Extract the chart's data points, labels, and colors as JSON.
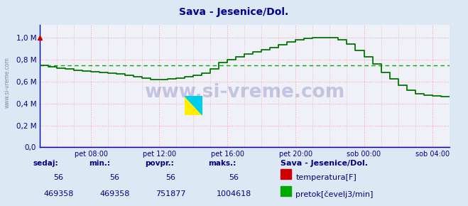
{
  "title": "Sava - Jesenice/Dol.",
  "bg_color": "#dce9f5",
  "plot_bg_color": "#f0f0f8",
  "grid_color": "#f0a0a0",
  "avg_line_color": "#00aa00",
  "avg_line_value": 0.751877,
  "flow_color": "#007700",
  "temp_color": "#cc0000",
  "x_labels": [
    "pet 08:00",
    "pet 12:00",
    "pet 16:00",
    "pet 20:00",
    "sob 00:00",
    "sob 04:00"
  ],
  "x_ticks_pos": [
    36,
    84,
    132,
    180,
    228,
    276
  ],
  "y_ticks": [
    0.0,
    0.2,
    0.4,
    0.6,
    0.8,
    1.0
  ],
  "y_labels": [
    "0,0",
    "0,2 M",
    "0,4 M",
    "0,6 M",
    "0,8 M",
    "1,0 M"
  ],
  "ylim": [
    0,
    1.12
  ],
  "xlim": [
    0,
    288
  ],
  "watermark": "www.si-vreme.com",
  "left_label": "www.si-vreme.com",
  "stat_labels": [
    "sedaj:",
    "min.:",
    "povpr.:",
    "maks.:"
  ],
  "stat_values_temp": [
    "56",
    "56",
    "56",
    "56"
  ],
  "stat_values_flow": [
    "469358",
    "469358",
    "751877",
    "1004618"
  ],
  "legend_title": "Sava - Jesenice/Dol.",
  "legend_items": [
    {
      "label": "temperatura[F]",
      "color": "#cc0000"
    },
    {
      "label": "pretok[čevelj3/min]",
      "color": "#00aa00"
    }
  ],
  "flow_keypoints": [
    [
      0,
      0.755
    ],
    [
      6,
      0.745
    ],
    [
      12,
      0.73
    ],
    [
      18,
      0.718
    ],
    [
      24,
      0.708
    ],
    [
      30,
      0.7
    ],
    [
      36,
      0.695
    ],
    [
      42,
      0.688
    ],
    [
      48,
      0.68
    ],
    [
      54,
      0.672
    ],
    [
      60,
      0.663
    ],
    [
      66,
      0.648
    ],
    [
      72,
      0.635
    ],
    [
      78,
      0.622
    ],
    [
      84,
      0.615
    ],
    [
      90,
      0.62
    ],
    [
      96,
      0.628
    ],
    [
      102,
      0.638
    ],
    [
      108,
      0.65
    ],
    [
      114,
      0.665
    ],
    [
      118,
      0.68
    ],
    [
      121,
      0.695
    ],
    [
      123,
      0.72
    ],
    [
      125,
      0.74
    ],
    [
      127,
      0.76
    ],
    [
      129,
      0.785
    ],
    [
      131,
      0.805
    ],
    [
      133,
      0.79
    ],
    [
      135,
      0.808
    ],
    [
      138,
      0.82
    ],
    [
      142,
      0.835
    ],
    [
      146,
      0.848
    ],
    [
      150,
      0.86
    ],
    [
      155,
      0.878
    ],
    [
      160,
      0.895
    ],
    [
      165,
      0.915
    ],
    [
      170,
      0.935
    ],
    [
      175,
      0.955
    ],
    [
      180,
      0.975
    ],
    [
      185,
      0.992
    ],
    [
      190,
      1.0
    ],
    [
      195,
      1.005
    ],
    [
      200,
      1.005
    ],
    [
      205,
      1.002
    ],
    [
      208,
      0.998
    ],
    [
      210,
      0.99
    ],
    [
      213,
      0.982
    ],
    [
      215,
      0.97
    ],
    [
      217,
      0.958
    ],
    [
      219,
      0.94
    ],
    [
      221,
      0.92
    ],
    [
      223,
      0.9
    ],
    [
      225,
      0.88
    ],
    [
      227,
      0.86
    ],
    [
      229,
      0.84
    ],
    [
      231,
      0.818
    ],
    [
      233,
      0.798
    ],
    [
      235,
      0.778
    ],
    [
      237,
      0.755
    ],
    [
      239,
      0.73
    ],
    [
      241,
      0.705
    ],
    [
      243,
      0.68
    ],
    [
      245,
      0.655
    ],
    [
      247,
      0.635
    ],
    [
      249,
      0.618
    ],
    [
      251,
      0.6
    ],
    [
      253,
      0.582
    ],
    [
      255,
      0.565
    ],
    [
      257,
      0.548
    ],
    [
      259,
      0.532
    ],
    [
      261,
      0.518
    ],
    [
      263,
      0.505
    ],
    [
      265,
      0.495
    ],
    [
      267,
      0.488
    ],
    [
      269,
      0.482
    ],
    [
      271,
      0.478
    ],
    [
      273,
      0.475
    ],
    [
      275,
      0.472
    ],
    [
      277,
      0.47
    ],
    [
      279,
      0.468
    ],
    [
      281,
      0.467
    ],
    [
      283,
      0.466
    ],
    [
      285,
      0.465
    ],
    [
      287,
      0.464
    ],
    [
      288,
      0.463
    ]
  ]
}
